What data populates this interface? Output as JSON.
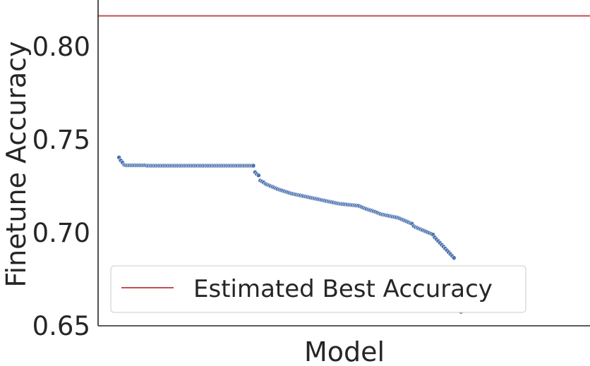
{
  "chart_data": {
    "type": "scatter",
    "xlabel": "Model",
    "ylabel": "Finetune Accuracy",
    "ylim": [
      0.65,
      0.825
    ],
    "xlim": [
      -12,
      270
    ],
    "yticks": [
      "0.65",
      "0.70",
      "0.75",
      "0.80"
    ],
    "grid": false,
    "legend": {
      "placement": "lower-left",
      "entries": [
        "Estimated Best Accuracy"
      ]
    },
    "reference_line": {
      "name": "Estimated Best Accuracy",
      "value": 0.8165,
      "color": "#c44e52"
    },
    "point_color": "#4c72b0",
    "series": [
      {
        "values": [
          0.7404,
          0.7388,
          0.7377,
          0.7365,
          0.7362,
          0.7362,
          0.7362,
          0.7362,
          0.7362,
          0.7362,
          0.7362,
          0.7362,
          0.7362,
          0.7362,
          0.7362,
          0.7362,
          0.736,
          0.736,
          0.736,
          0.736,
          0.736,
          0.736,
          0.736,
          0.736,
          0.736,
          0.736,
          0.736,
          0.736,
          0.736,
          0.736,
          0.736,
          0.736,
          0.736,
          0.736,
          0.736,
          0.736,
          0.736,
          0.736,
          0.736,
          0.736,
          0.736,
          0.736,
          0.736,
          0.736,
          0.736,
          0.736,
          0.736,
          0.736,
          0.736,
          0.736,
          0.736,
          0.736,
          0.736,
          0.736,
          0.736,
          0.736,
          0.736,
          0.736,
          0.736,
          0.736,
          0.736,
          0.736,
          0.736,
          0.736,
          0.736,
          0.736,
          0.736,
          0.736,
          0.736,
          0.736,
          0.736,
          0.736,
          0.736,
          0.736,
          0.736,
          0.736,
          0.736,
          0.736,
          0.7325,
          0.7315,
          0.7308,
          0.728,
          0.7275,
          0.727,
          0.7262,
          0.7258,
          0.7254,
          0.725,
          0.7246,
          0.7242,
          0.7238,
          0.7234,
          0.7231,
          0.7228,
          0.7225,
          0.7222,
          0.7219,
          0.7216,
          0.7213,
          0.721,
          0.7208,
          0.7206,
          0.7204,
          0.7202,
          0.72,
          0.7198,
          0.7196,
          0.7194,
          0.7192,
          0.719,
          0.7188,
          0.7186,
          0.7184,
          0.7182,
          0.718,
          0.7178,
          0.7176,
          0.7174,
          0.7172,
          0.717,
          0.7168,
          0.7166,
          0.7164,
          0.7162,
          0.716,
          0.7158,
          0.7156,
          0.7155,
          0.7154,
          0.7153,
          0.7152,
          0.7151,
          0.715,
          0.7149,
          0.7148,
          0.7147,
          0.7146,
          0.7145,
          0.7142,
          0.7138,
          0.7134,
          0.713,
          0.7127,
          0.7124,
          0.7121,
          0.7118,
          0.7115,
          0.7112,
          0.7108,
          0.7104,
          0.71,
          0.7098,
          0.7096,
          0.7094,
          0.7092,
          0.709,
          0.7088,
          0.7086,
          0.7084,
          0.7082,
          0.708,
          0.7076,
          0.7072,
          0.7068,
          0.7064,
          0.706,
          0.7056,
          0.7052,
          0.7048,
          0.7035,
          0.703,
          0.7026,
          0.7022,
          0.7018,
          0.7014,
          0.701,
          0.7006,
          0.7002,
          0.6998,
          0.6994,
          0.699,
          0.6975,
          0.6965,
          0.6955,
          0.6945,
          0.6935,
          0.6925,
          0.6915,
          0.6905,
          0.6895,
          0.6885,
          0.6875,
          0.6865,
          0.679,
          0.6755,
          0.666,
          0.6575
        ]
      }
    ]
  }
}
